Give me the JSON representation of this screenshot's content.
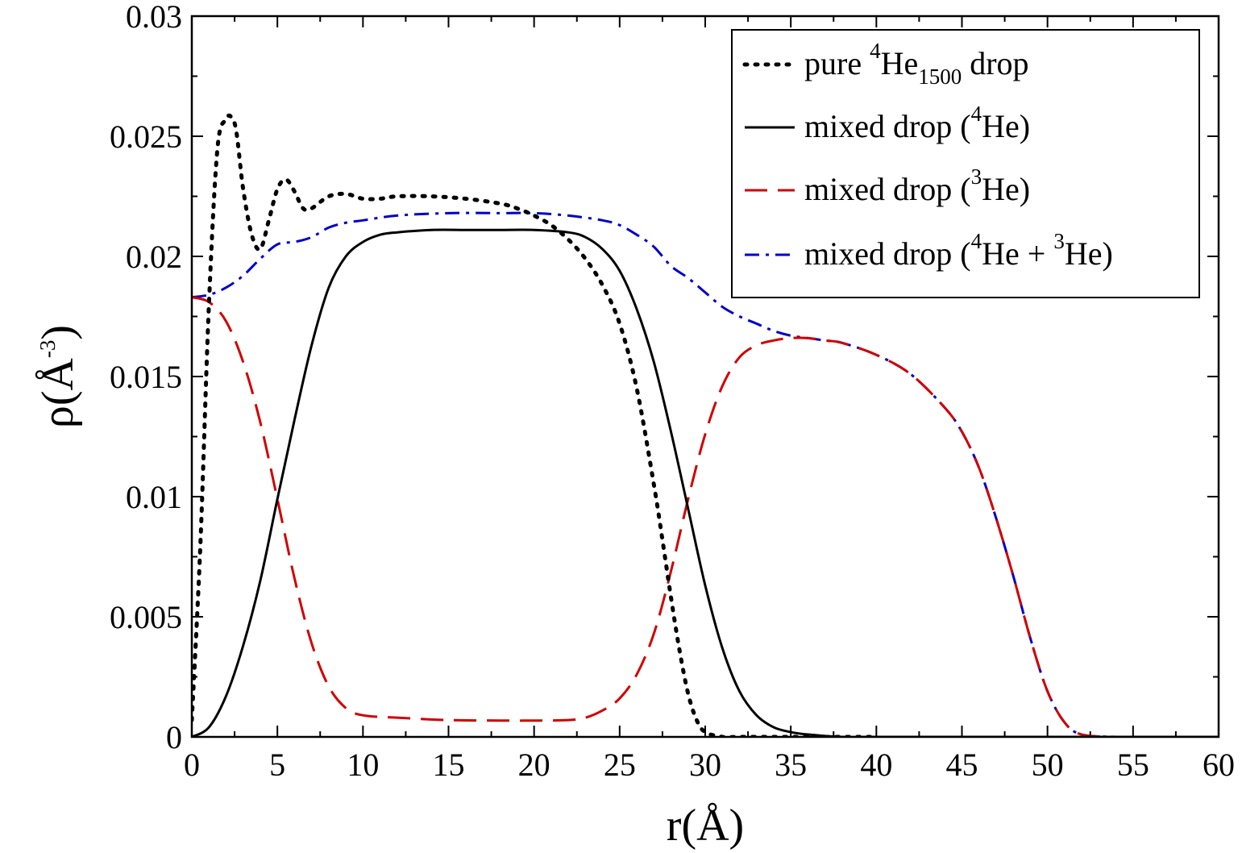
{
  "chart_data": {
    "type": "line",
    "title": "",
    "xlabel": "r(Å)",
    "ylabel": "ρ(Å-3)",
    "ylabel_parts": {
      "base": "ρ(Å",
      "sup": "-3",
      "close": ")"
    },
    "xlim": [
      0,
      60
    ],
    "ylim": [
      0,
      0.03
    ],
    "x_ticks": [
      0,
      5,
      10,
      15,
      20,
      25,
      30,
      35,
      40,
      45,
      50,
      55,
      60
    ],
    "x_tick_labels": [
      "0",
      "5",
      "10",
      "15",
      "20",
      "25",
      "30",
      "35",
      "40",
      "45",
      "50",
      "55",
      "60"
    ],
    "y_ticks": [
      0,
      0.005,
      0.01,
      0.015,
      0.02,
      0.025,
      0.03
    ],
    "y_tick_labels": [
      "0",
      "0.005",
      "0.01",
      "0.015",
      "0.02",
      "0.025",
      "0.03"
    ],
    "x_minor_step": 2.5,
    "y_minor_step": 0.0025,
    "grid": false,
    "legend_position": "top-right",
    "legend": [
      {
        "series": "pure",
        "parts": [
          {
            "t": "pure "
          },
          {
            "t": "4",
            "sup": true
          },
          {
            "t": "He"
          },
          {
            "t": "1500",
            "sub": true
          },
          {
            "t": " drop"
          }
        ]
      },
      {
        "series": "he4",
        "parts": [
          {
            "t": "mixed drop ("
          },
          {
            "t": "4",
            "sup": true
          },
          {
            "t": "He)"
          }
        ]
      },
      {
        "series": "he3",
        "parts": [
          {
            "t": "mixed drop ("
          },
          {
            "t": "3",
            "sup": true
          },
          {
            "t": "He)"
          }
        ]
      },
      {
        "series": "total",
        "parts": [
          {
            "t": "mixed drop ("
          },
          {
            "t": "4",
            "sup": true
          },
          {
            "t": "He + "
          },
          {
            "t": "3",
            "sup": true
          },
          {
            "t": "He)"
          }
        ]
      }
    ],
    "series": [
      {
        "id": "pure",
        "name": "pure 4He1500 drop",
        "color": "#000000",
        "dash": "dotted",
        "x": [
          0,
          0.5,
          1,
          1.5,
          2,
          2.3,
          2.6,
          3,
          3.5,
          4,
          4.5,
          5,
          5.5,
          6,
          6.5,
          7,
          8,
          9,
          10,
          11,
          12,
          14,
          16,
          18,
          19,
          20,
          21,
          22,
          23,
          24,
          25,
          26,
          27,
          27.5,
          28,
          28.5,
          29,
          29.5,
          30,
          31,
          32,
          34,
          36,
          38,
          40
        ],
        "y": [
          0.0007,
          0.008,
          0.018,
          0.0245,
          0.0257,
          0.0258,
          0.0252,
          0.0228,
          0.0209,
          0.0203,
          0.0215,
          0.0228,
          0.0232,
          0.0227,
          0.022,
          0.022,
          0.0225,
          0.0226,
          0.0224,
          0.0224,
          0.0225,
          0.0225,
          0.0224,
          0.0222,
          0.022,
          0.0217,
          0.0213,
          0.0207,
          0.0199,
          0.0188,
          0.0172,
          0.0145,
          0.0105,
          0.0082,
          0.0058,
          0.0036,
          0.0018,
          0.0007,
          0.0002,
          0.0,
          0.0,
          0.0,
          0.0,
          0.0,
          0.0
        ]
      },
      {
        "id": "he4",
        "name": "mixed drop (4He)",
        "color": "#000000",
        "dash": "solid",
        "x": [
          0,
          1,
          2,
          3,
          4,
          5,
          6,
          7,
          8,
          9,
          10,
          11,
          12,
          14,
          16,
          18,
          20,
          22,
          23,
          24,
          25,
          26,
          27,
          28,
          29,
          30,
          31,
          32,
          33,
          34,
          35,
          36,
          38,
          40,
          45,
          50,
          55,
          60
        ],
        "y": [
          0.0,
          0.0004,
          0.0017,
          0.0038,
          0.0065,
          0.0099,
          0.0132,
          0.0163,
          0.0187,
          0.02,
          0.0206,
          0.0209,
          0.021,
          0.0211,
          0.0211,
          0.0211,
          0.0211,
          0.021,
          0.0208,
          0.0203,
          0.0194,
          0.0178,
          0.0156,
          0.0127,
          0.0095,
          0.0063,
          0.0037,
          0.0019,
          0.0009,
          0.0004,
          0.0002,
          0.0001,
          0.0,
          0.0,
          0.0,
          0.0,
          0.0,
          0.0
        ]
      },
      {
        "id": "he3",
        "name": "mixed drop (3He)",
        "color": "#d00000",
        "dash": "dashed",
        "x": [
          0,
          1,
          2,
          3,
          4,
          5,
          6,
          7,
          8,
          9,
          10,
          12,
          15,
          18,
          20,
          22,
          23,
          24,
          25,
          26,
          27,
          28,
          29,
          30,
          31,
          32,
          33,
          34,
          35,
          36,
          37,
          38,
          40,
          42,
          44,
          45,
          46,
          47,
          48,
          49,
          50,
          51,
          52,
          54,
          56,
          60
        ],
        "y": [
          0.0183,
          0.0181,
          0.0173,
          0.0156,
          0.0131,
          0.0099,
          0.0066,
          0.0039,
          0.0021,
          0.0012,
          0.0009,
          0.0008,
          0.0007,
          0.00068,
          0.00068,
          0.0007,
          0.0008,
          0.0011,
          0.0016,
          0.0026,
          0.0043,
          0.0069,
          0.0099,
          0.0126,
          0.0146,
          0.0158,
          0.0163,
          0.0165,
          0.0166,
          0.0166,
          0.0165,
          0.0164,
          0.0159,
          0.0151,
          0.0137,
          0.0127,
          0.0112,
          0.0091,
          0.0067,
          0.0041,
          0.0019,
          0.0006,
          0.0001,
          0.0,
          0.0,
          0.0
        ]
      },
      {
        "id": "total",
        "name": "mixed drop (4He + 3He)",
        "color": "#0000cc",
        "dash": "dashdot",
        "x": [
          0,
          1,
          2,
          3,
          4,
          5,
          6,
          7,
          8,
          9,
          10,
          12,
          15,
          18,
          20,
          22,
          24,
          25,
          26,
          27,
          28,
          29,
          30,
          31,
          32,
          33,
          34,
          35,
          36,
          37,
          38,
          40,
          42,
          44,
          45,
          46,
          47,
          48,
          49,
          50,
          51,
          52,
          54,
          56,
          60
        ],
        "y": [
          0.0183,
          0.0184,
          0.0187,
          0.0192,
          0.0199,
          0.0205,
          0.0206,
          0.0208,
          0.0212,
          0.0214,
          0.0215,
          0.0217,
          0.0218,
          0.0218,
          0.0218,
          0.0217,
          0.0215,
          0.0213,
          0.0209,
          0.0204,
          0.0196,
          0.0191,
          0.0185,
          0.0179,
          0.0175,
          0.0172,
          0.0169,
          0.0167,
          0.0166,
          0.0165,
          0.0164,
          0.0159,
          0.0151,
          0.0137,
          0.0127,
          0.0112,
          0.0091,
          0.0067,
          0.0041,
          0.0019,
          0.0006,
          0.0001,
          0.0,
          0.0,
          0.0
        ]
      }
    ]
  }
}
